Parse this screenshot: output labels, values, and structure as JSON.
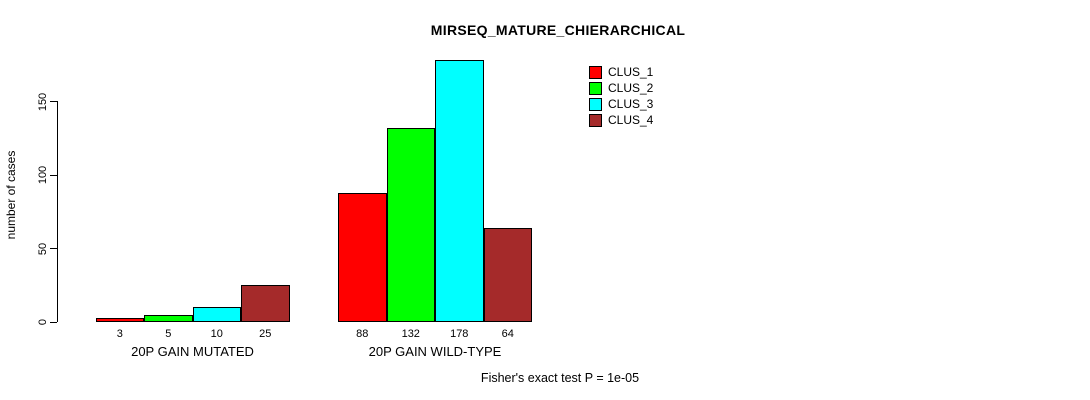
{
  "chart_data": {
    "type": "bar",
    "title": "MIRSEQ_MATURE_CHIERARCHICAL",
    "ylabel": "number of cases",
    "xlabel": "",
    "annotation": "Fisher's exact test P = 1e-05",
    "ylim": [
      0,
      180
    ],
    "yticks": [
      0,
      50,
      100,
      150
    ],
    "grid": false,
    "legend_position": "top-right-inside",
    "axis_color": "#000000",
    "bar_border_color": "#000000",
    "categories": [
      "20P GAIN MUTATED",
      "20P GAIN WILD-TYPE"
    ],
    "series": [
      {
        "name": "CLUS_1",
        "color": "#ff0000",
        "values": [
          3,
          88
        ]
      },
      {
        "name": "CLUS_2",
        "color": "#00ff00",
        "values": [
          5,
          132
        ]
      },
      {
        "name": "CLUS_3",
        "color": "#00ffff",
        "values": [
          10,
          178
        ]
      },
      {
        "name": "CLUS_4",
        "color": "#a52a2a",
        "values": [
          25,
          64
        ]
      }
    ],
    "bar_value_labels_shown": true
  }
}
